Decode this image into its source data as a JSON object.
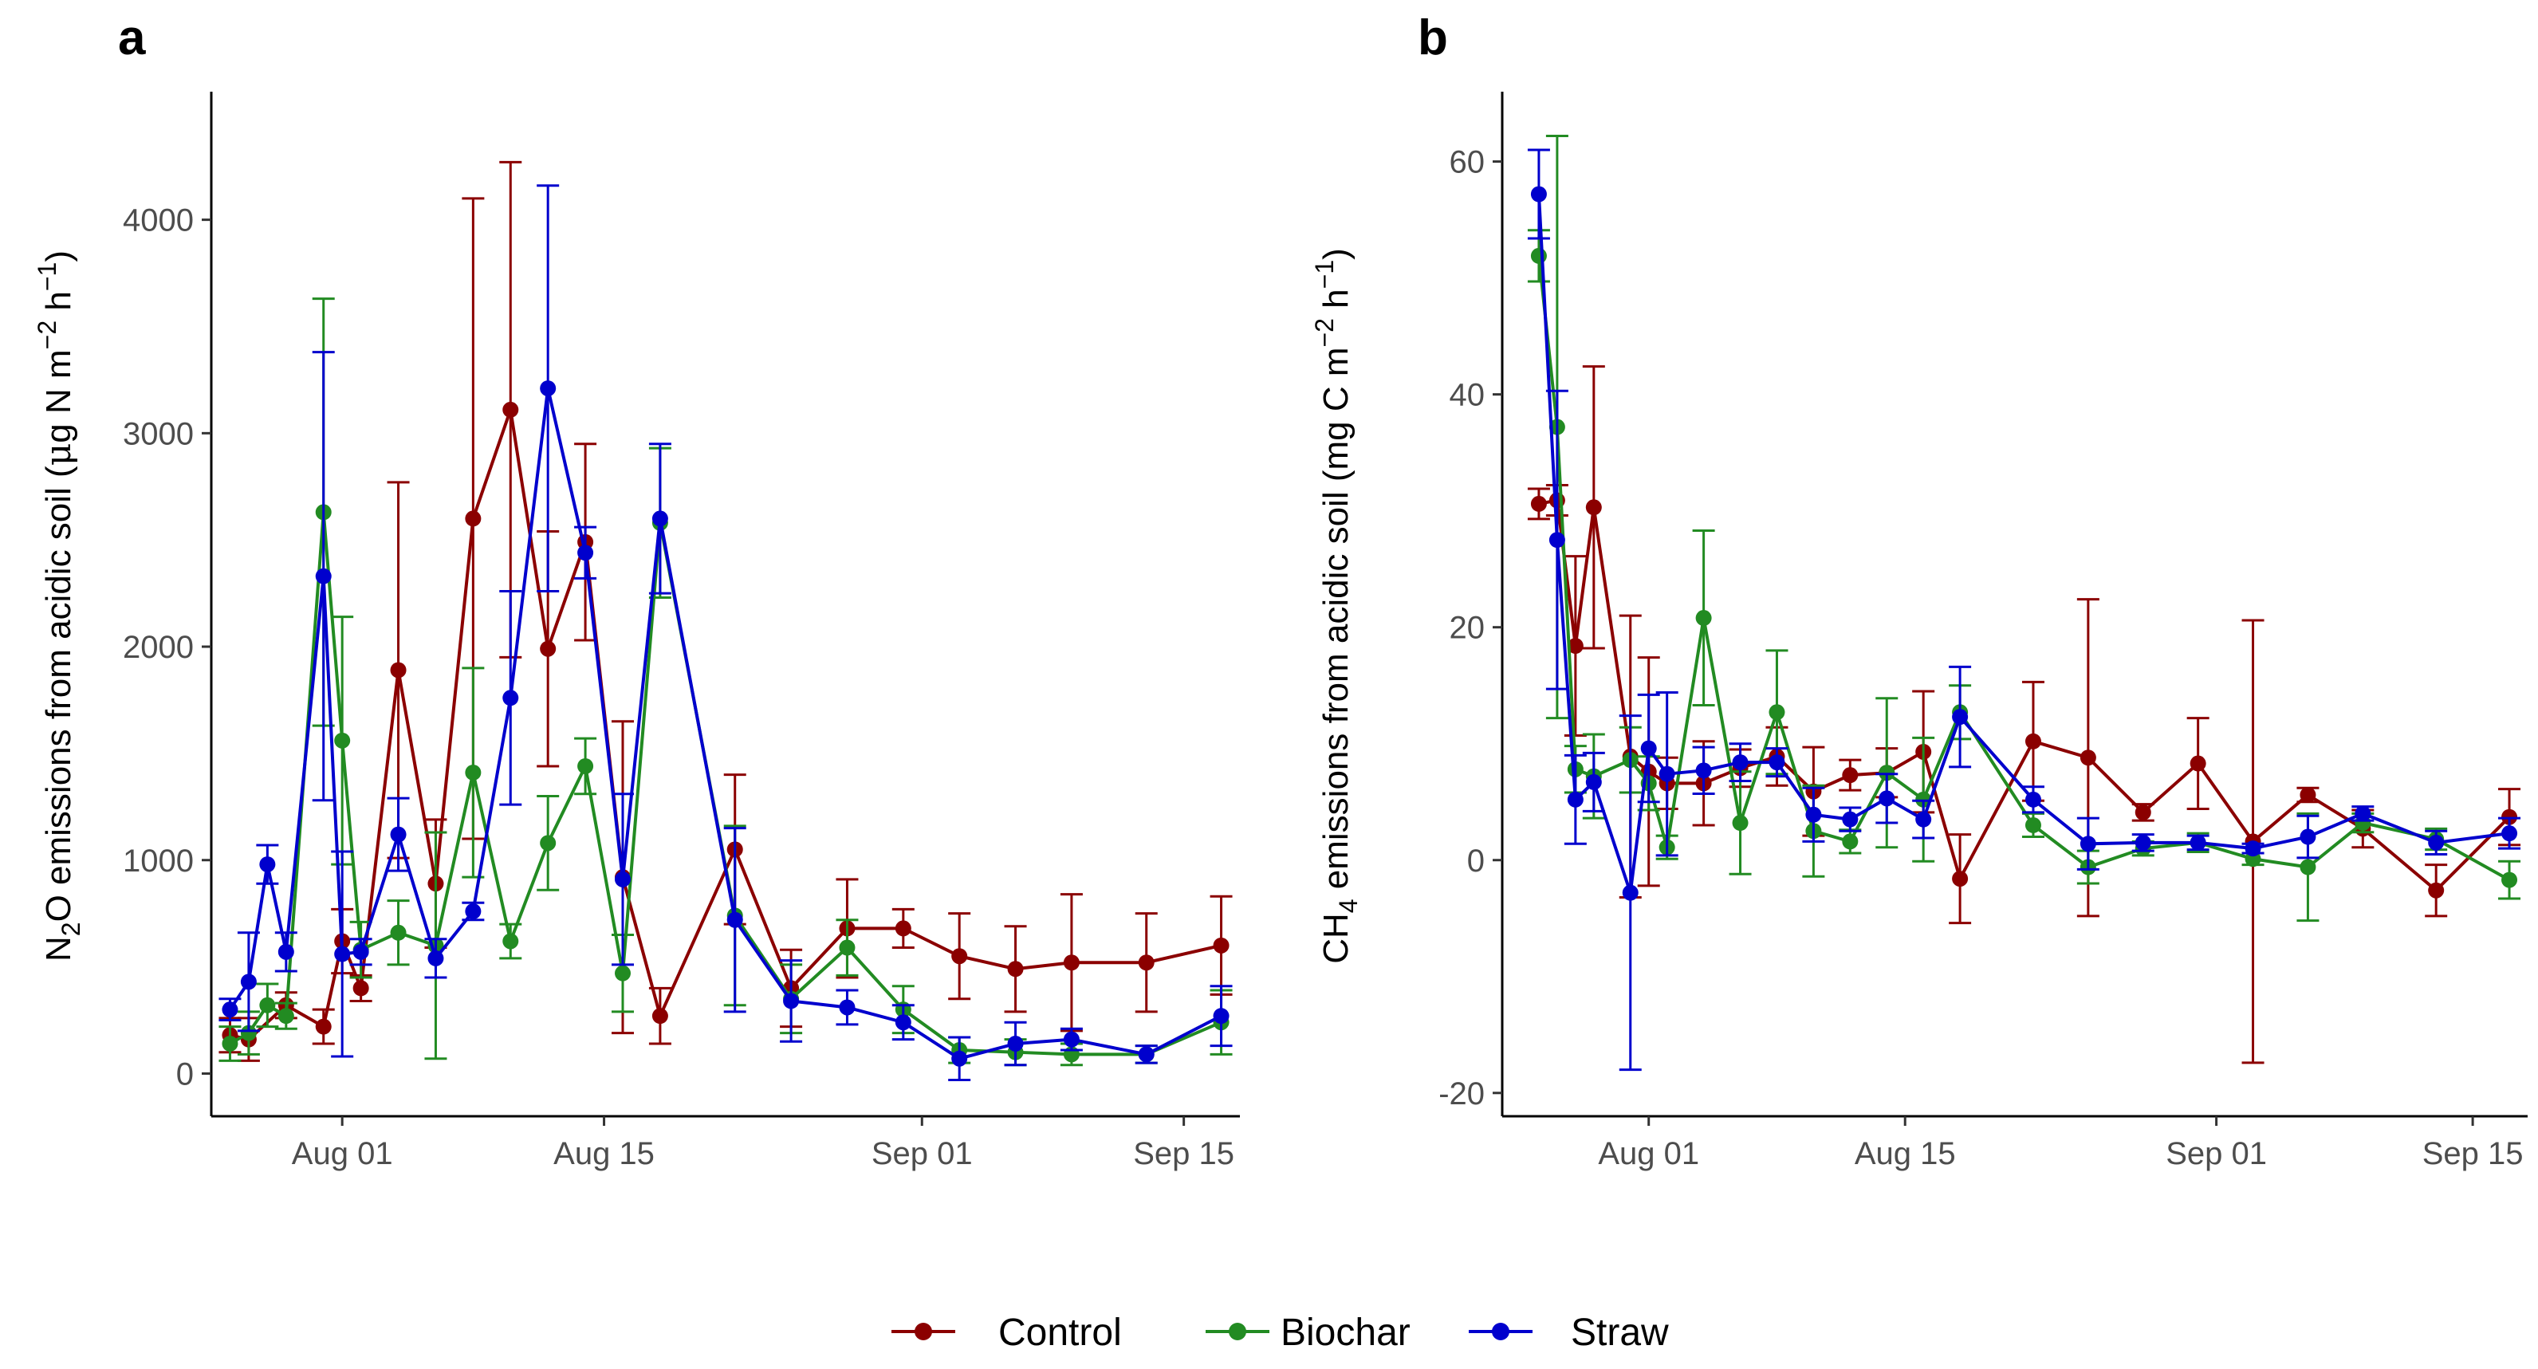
{
  "legend": {
    "title": "",
    "items": [
      {
        "name": "Control",
        "color": "#8B0000"
      },
      {
        "name": "Biochar",
        "color": "#228B22"
      },
      {
        "name": "Straw",
        "color": "#0000CD"
      }
    ]
  },
  "chart_data": [
    {
      "type": "line",
      "panel_label": "a",
      "ylabel_parts": {
        "a": "N",
        "sub": "2",
        "b": "O emissions from acidic soil (",
        "mu": "μ",
        "c": "g N m",
        "sup1": "−2",
        "d": " h",
        "sup2": "−1",
        "e": ")"
      },
      "xlabel": "",
      "xlim": [
        -7,
        48
      ],
      "ylim": [
        -200,
        4600
      ],
      "x_ticks": [
        0,
        14,
        31,
        45
      ],
      "x_tick_labels": [
        "Aug 01",
        "Aug 15",
        "Sep 01",
        "Sep 15"
      ],
      "y_ticks": [
        0,
        1000,
        2000,
        3000,
        4000
      ],
      "y_tick_labels": [
        "0",
        "1000",
        "2000",
        "3000",
        "4000"
      ],
      "series": [
        {
          "name": "Control",
          "x": [
            -6,
            -5,
            -3,
            -1,
            0,
            1,
            3,
            5,
            7,
            9,
            11,
            13,
            15,
            17,
            21,
            24,
            27,
            30,
            33,
            36,
            39,
            43,
            47
          ],
          "y": [
            180,
            160,
            320,
            220,
            620,
            400,
            1890,
            890,
            2600,
            3110,
            1990,
            2490,
            920,
            270,
            1050,
            400,
            680,
            680,
            550,
            490,
            520,
            520,
            600
          ],
          "err": [
            80,
            100,
            60,
            80,
            150,
            60,
            880,
            300,
            1500,
            1160,
            550,
            460,
            730,
            130,
            350,
            180,
            230,
            90,
            200,
            200,
            320,
            230,
            230
          ]
        },
        {
          "name": "Biochar",
          "x": [
            -6,
            -5,
            -4,
            -3,
            -1,
            0,
            1,
            3,
            5,
            7,
            9,
            11,
            13,
            15,
            17,
            21,
            24,
            27,
            30,
            33,
            36,
            39,
            43,
            47
          ],
          "y": [
            140,
            190,
            320,
            270,
            2630,
            1560,
            580,
            660,
            600,
            1410,
            620,
            1080,
            1440,
            470,
            2580,
            740,
            350,
            590,
            300,
            110,
            100,
            90,
            90,
            240
          ],
          "err": [
            80,
            100,
            100,
            60,
            1000,
            580,
            130,
            150,
            530,
            490,
            80,
            220,
            130,
            180,
            350,
            420,
            160,
            130,
            110,
            60,
            60,
            50,
            40,
            150
          ]
        },
        {
          "name": "Straw",
          "x": [
            -6,
            -5,
            -4,
            -3,
            -1,
            0,
            1,
            3,
            5,
            7,
            9,
            11,
            13,
            15,
            17,
            21,
            24,
            27,
            30,
            33,
            36,
            39,
            43,
            47
          ],
          "y": [
            300,
            430,
            980,
            570,
            2330,
            560,
            570,
            1120,
            540,
            760,
            1760,
            3210,
            2440,
            910,
            2600,
            720,
            340,
            310,
            240,
            70,
            140,
            160,
            90,
            270
          ],
          "err": [
            50,
            230,
            90,
            90,
            1050,
            480,
            60,
            170,
            90,
            40,
            500,
            950,
            120,
            400,
            350,
            430,
            190,
            80,
            80,
            100,
            100,
            50,
            40,
            140
          ]
        }
      ]
    },
    {
      "type": "line",
      "panel_label": "b",
      "ylabel_parts": {
        "a": "CH",
        "sub": "4",
        "b": " emissions from acidic soil (mg C m",
        "sup1": "−2",
        "d": " h",
        "sup2": "−1",
        "e": ")"
      },
      "xlabel": "",
      "xlim": [
        -8,
        48
      ],
      "ylim": [
        -22,
        66
      ],
      "x_ticks": [
        0,
        14,
        31,
        45
      ],
      "x_tick_labels": [
        "Aug 01",
        "Aug 15",
        "Sep 01",
        "Sep 15"
      ],
      "y_ticks": [
        -20,
        0,
        20,
        40,
        60
      ],
      "y_tick_labels": [
        "-20",
        "0",
        "20",
        "40",
        "60"
      ],
      "series": [
        {
          "name": "Control",
          "x": [
            -6,
            -5,
            -4,
            -3,
            -1,
            0,
            1,
            3,
            5,
            7,
            9,
            11,
            13,
            15,
            17,
            21,
            24,
            27,
            30,
            33,
            36,
            39,
            43,
            47
          ],
          "y": [
            30.6,
            30.9,
            18.4,
            30.3,
            8.9,
            7.6,
            6.6,
            6.6,
            7.9,
            8.9,
            5.9,
            7.3,
            7.5,
            9.3,
            -1.6,
            10.2,
            8.8,
            4.1,
            8.3,
            1.6,
            5.6,
            2.7,
            -2.6,
            3.7
          ],
          "err": [
            1.3,
            1.3,
            7.7,
            12.1,
            12.1,
            9.8,
            2.2,
            3.6,
            1.6,
            2.5,
            3.8,
            1.3,
            2.1,
            5.2,
            3.8,
            5.1,
            13.6,
            0.7,
            3.9,
            19,
            0.6,
            1.6,
            2.2,
            2.4
          ]
        },
        {
          "name": "Biochar",
          "x": [
            -6,
            -5,
            -4,
            -3,
            -1,
            0,
            1,
            3,
            5,
            7,
            9,
            11,
            13,
            15,
            17,
            21,
            24,
            27,
            30,
            33,
            36,
            39,
            43,
            47
          ],
          "y": [
            51.9,
            37.2,
            7.8,
            7.2,
            8.6,
            6.6,
            1.1,
            20.8,
            3.2,
            12.7,
            2.5,
            1.6,
            7.5,
            5.2,
            12.7,
            3.0,
            -0.6,
            1.0,
            1.5,
            0.1,
            -0.6,
            3.2,
            1.8,
            -1.7
          ],
          "err": [
            2.2,
            25,
            2.0,
            3.6,
            2.8,
            2.3,
            1.0,
            7.5,
            4.4,
            5.3,
            3.9,
            1.0,
            6.4,
            5.3,
            2.3,
            1.0,
            1.4,
            0.6,
            0.8,
            0.5,
            4.6,
            0.8,
            0.9,
            1.6
          ]
        },
        {
          "name": "Straw",
          "x": [
            -6,
            -5,
            -4,
            -3,
            -1,
            0,
            1,
            3,
            5,
            7,
            9,
            11,
            13,
            15,
            17,
            21,
            24,
            27,
            30,
            33,
            36,
            39,
            43,
            47
          ],
          "y": [
            57.2,
            27.5,
            5.2,
            6.7,
            -2.8,
            9.6,
            7.4,
            7.7,
            8.4,
            8.4,
            3.9,
            3.5,
            5.3,
            3.5,
            12.3,
            5.2,
            1.4,
            1.5,
            1.5,
            1.0,
            2.0,
            4.0,
            1.5,
            2.3
          ],
          "err": [
            3.8,
            12.8,
            3.8,
            2.5,
            15.2,
            4.6,
            7.0,
            2.0,
            1.6,
            1.2,
            2.3,
            1.0,
            2.1,
            1.6,
            4.3,
            1.1,
            2.2,
            0.7,
            0.6,
            0.4,
            1.8,
            0.6,
            1.0,
            1.3
          ]
        }
      ]
    }
  ]
}
